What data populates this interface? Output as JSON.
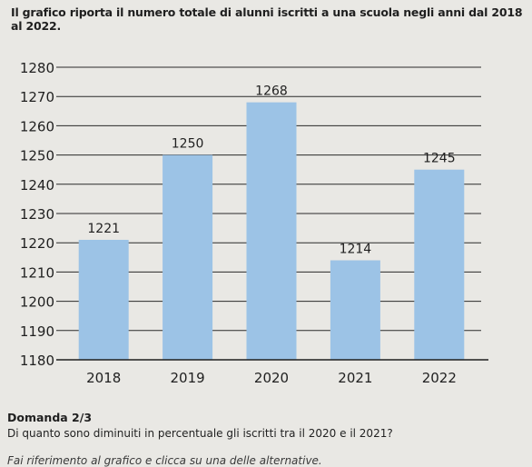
{
  "intro_text": "Il grafico riporta il numero totale di alunni iscritti a una scuola negli anni dal 2018 al 2022.",
  "chart_data": {
    "type": "bar",
    "categories": [
      "2018",
      "2019",
      "2020",
      "2021",
      "2022"
    ],
    "values": [
      1221,
      1250,
      1268,
      1214,
      1245
    ],
    "data_labels": [
      "1221",
      "1250",
      "1268",
      "1214",
      "1245"
    ],
    "ylim": [
      1180,
      1280
    ],
    "yticks": [
      1180,
      1190,
      1200,
      1210,
      1220,
      1230,
      1240,
      1250,
      1260,
      1270,
      1280
    ],
    "title": "",
    "xlabel": "",
    "ylabel": "",
    "grid": true,
    "bar_color": "#9cc3e6"
  },
  "question": {
    "number": "Domanda 2/3",
    "text": "Di quanto sono diminuiti in percentuale gli iscritti tra il 2020 e il 2021?",
    "instruction": "Fai riferimento al grafico e clicca su una delle alternative."
  }
}
